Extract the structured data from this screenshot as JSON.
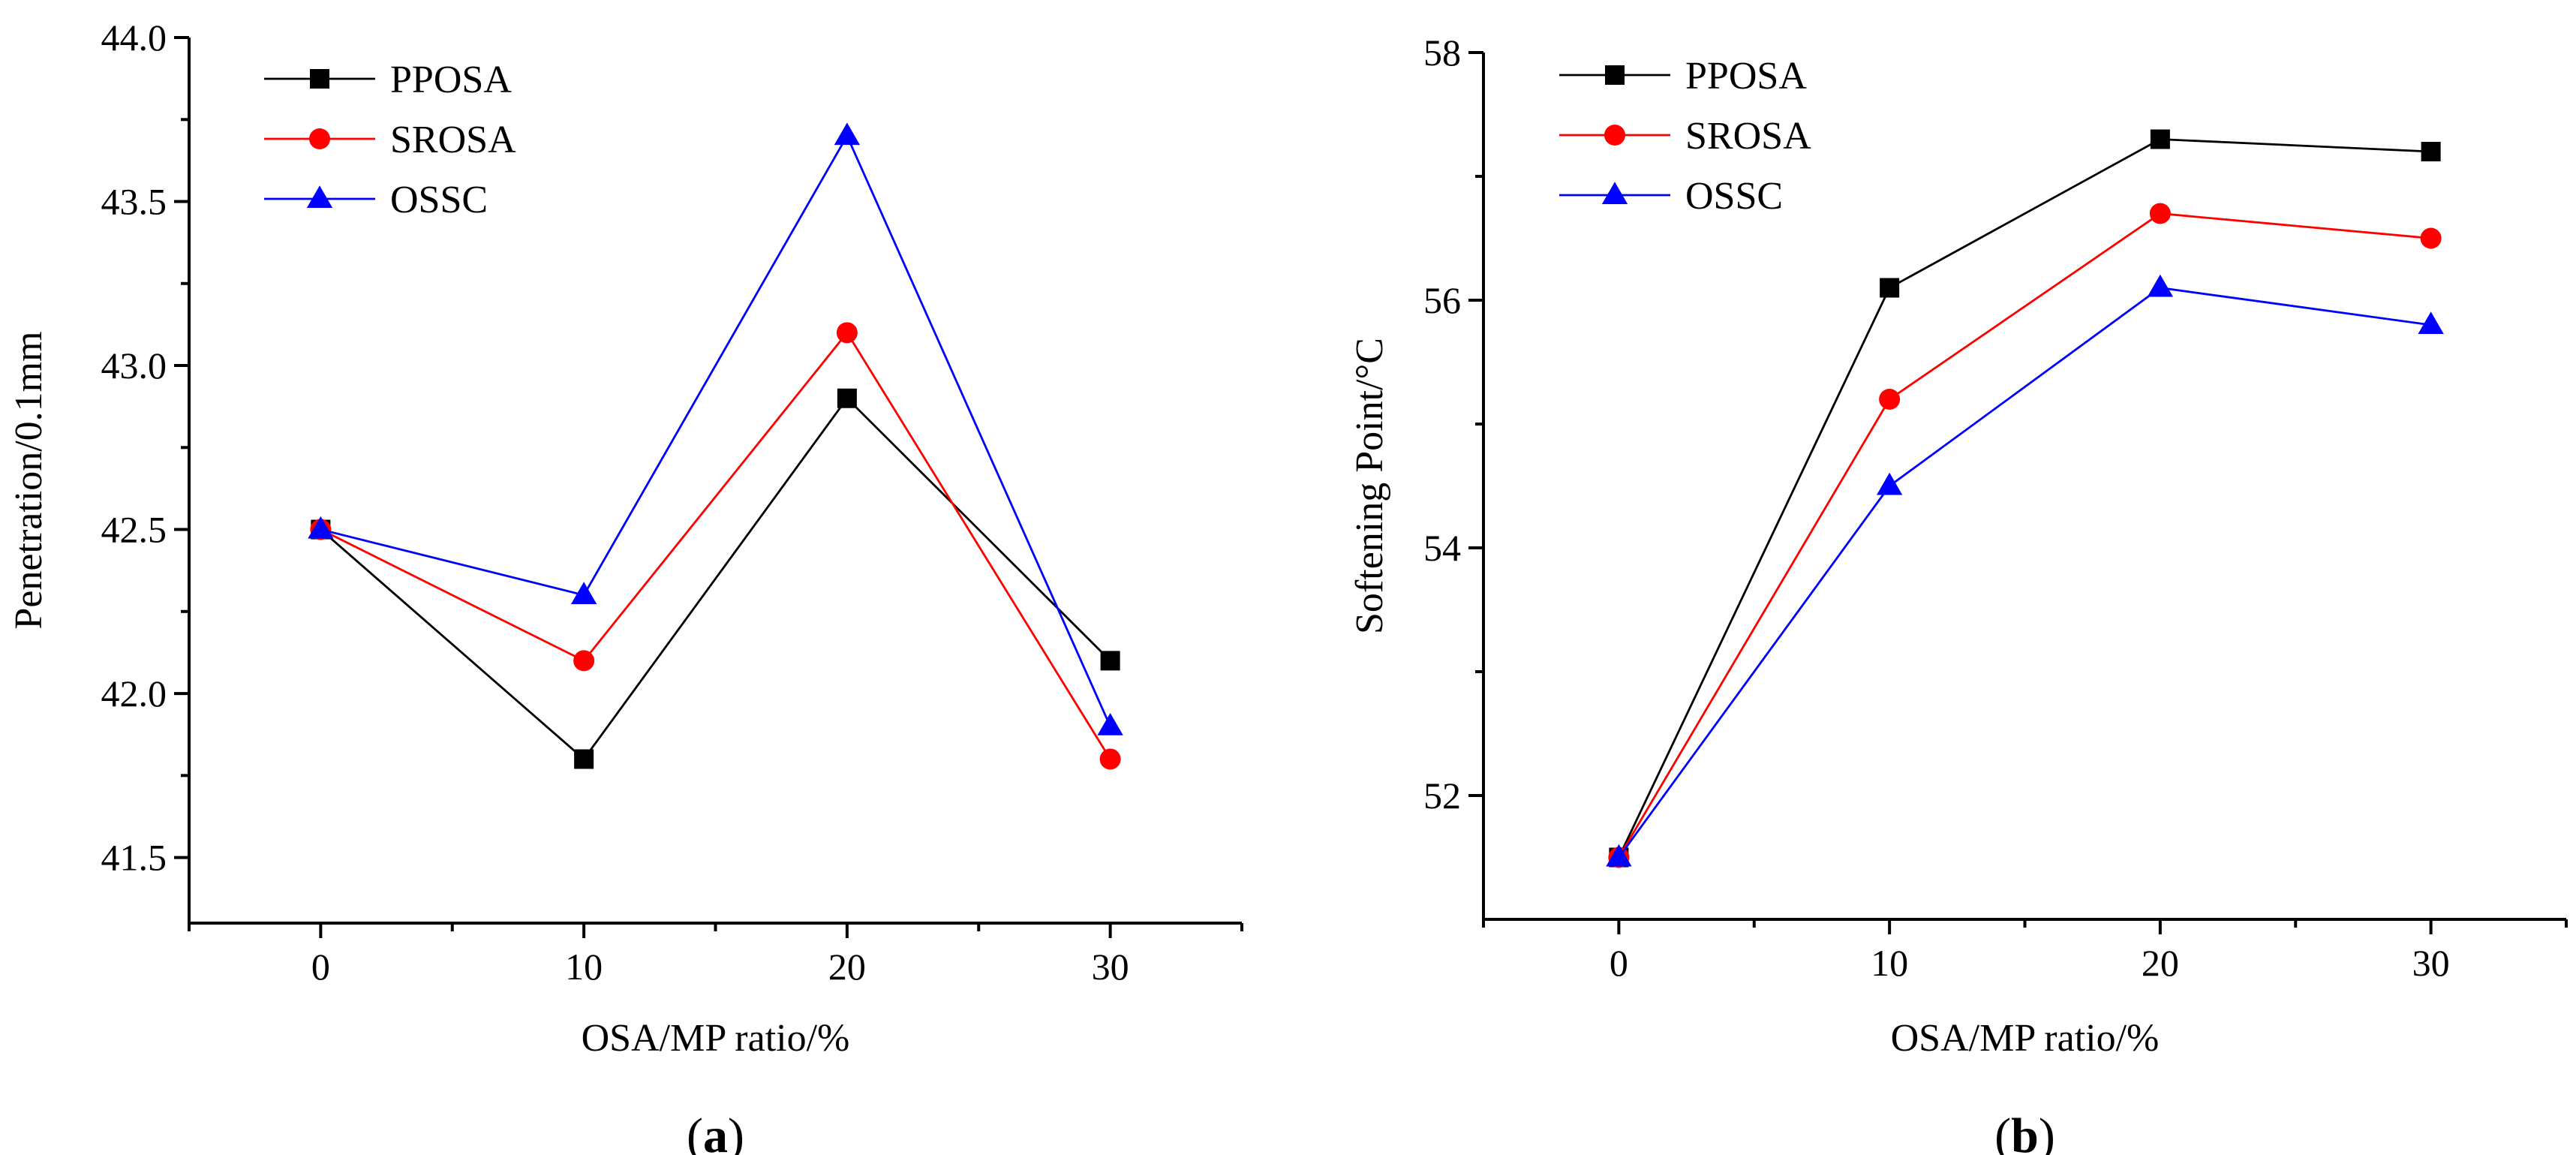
{
  "figure": {
    "panels": [
      "a",
      "b"
    ]
  },
  "chart_data": [
    {
      "id": "a",
      "type": "line",
      "panel_label": "a",
      "title": "",
      "xlabel": "OSA/MP ratio/%",
      "ylabel": "Penetration/0.1mm",
      "x": [
        0,
        10,
        20,
        30
      ],
      "xlim": [
        -5,
        35
      ],
      "ylim": [
        41.3,
        44.0
      ],
      "xticks_major": [
        0,
        10,
        20,
        30
      ],
      "xticks_minor": [
        -5,
        5,
        15,
        25,
        35
      ],
      "xtick_labels": [
        "0",
        "10",
        "20",
        "30"
      ],
      "yticks_major": [
        41.5,
        42.0,
        42.5,
        43.0,
        43.5,
        44.0
      ],
      "yticks_minor": [
        41.75,
        42.25,
        42.75,
        43.25,
        43.75
      ],
      "ytick_labels": [
        "41.5",
        "42.0",
        "42.5",
        "43.0",
        "43.5",
        "44.0"
      ],
      "grid": false,
      "legend_position": "top-left",
      "series": [
        {
          "name": "PPOSA",
          "color": "#000000",
          "marker": "square",
          "values": [
            42.5,
            41.8,
            42.9,
            42.1
          ]
        },
        {
          "name": "SROSA",
          "color": "#ff0000",
          "marker": "circle",
          "values": [
            42.5,
            42.1,
            43.1,
            41.8
          ]
        },
        {
          "name": "OSSC",
          "color": "#0000ff",
          "marker": "triangle",
          "values": [
            42.5,
            42.3,
            43.7,
            41.9
          ]
        }
      ]
    },
    {
      "id": "b",
      "type": "line",
      "panel_label": "b",
      "title": "",
      "xlabel": "OSA/MP ratio/%",
      "ylabel": "Softening Point/°C",
      "x": [
        0,
        10,
        20,
        30
      ],
      "xlim": [
        -5,
        35
      ],
      "ylim": [
        51.0,
        58.0
      ],
      "xticks_major": [
        0,
        10,
        20,
        30
      ],
      "xticks_minor": [
        -5,
        5,
        15,
        25,
        35
      ],
      "xtick_labels": [
        "0",
        "10",
        "20",
        "30"
      ],
      "yticks_major": [
        52,
        54,
        56,
        58
      ],
      "yticks_minor": [
        53,
        55,
        57
      ],
      "ytick_labels": [
        "52",
        "54",
        "56",
        "58"
      ],
      "grid": false,
      "legend_position": "top-left",
      "series": [
        {
          "name": "PPOSA",
          "color": "#000000",
          "marker": "square",
          "values": [
            51.5,
            56.1,
            57.3,
            57.2
          ]
        },
        {
          "name": "SROSA",
          "color": "#ff0000",
          "marker": "circle",
          "values": [
            51.5,
            55.2,
            56.7,
            56.5
          ]
        },
        {
          "name": "OSSC",
          "color": "#0000ff",
          "marker": "triangle",
          "values": [
            51.5,
            54.5,
            56.1,
            55.8
          ]
        }
      ]
    }
  ]
}
